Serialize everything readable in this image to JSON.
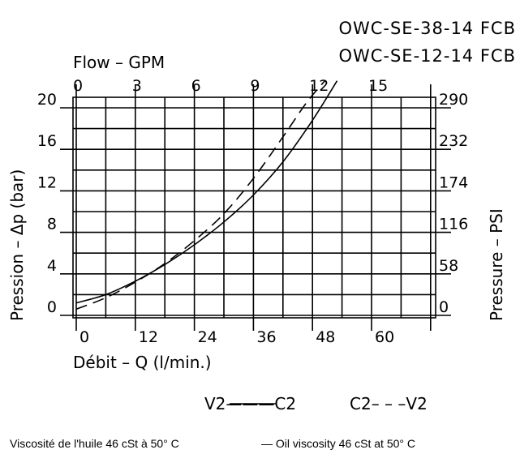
{
  "models": [
    "OWC-SE-38-14 FCB",
    "OWC-SE-12-14 FCB"
  ],
  "chart_data": {
    "type": "line",
    "axes": {
      "top_x": {
        "label": "Flow  –  GPM",
        "ticks": [
          "0",
          "3",
          "6",
          "9",
          "12",
          "15"
        ],
        "range": [
          0,
          18.2
        ]
      },
      "bottom_x": {
        "label": "Débit  –  Q (l/min.)",
        "ticks": [
          "0",
          "12",
          "24",
          "36",
          "48",
          "60"
        ],
        "range": [
          0,
          69
        ]
      },
      "left_y": {
        "label": "Pression  –  Δp (bar)",
        "ticks": [
          "0",
          "4",
          "8",
          "12",
          "16",
          "20"
        ],
        "range": [
          0,
          22.5
        ]
      },
      "right_y": {
        "label": "Pressure  –  PSI",
        "ticks": [
          "0",
          "58",
          "116",
          "174",
          "232",
          "290"
        ],
        "range": [
          0,
          326
        ]
      }
    },
    "grid": true,
    "series": [
      {
        "name": "V2———C2",
        "style": "solid",
        "x": [
          0,
          6,
          12,
          18,
          24,
          30,
          36,
          42,
          48,
          53
        ],
        "y": [
          1.2,
          2.0,
          3.3,
          4.9,
          6.8,
          9.0,
          11.6,
          14.8,
          18.8,
          22.6
        ]
      },
      {
        "name": "C2– – –V2",
        "style": "dashed",
        "x": [
          0,
          6,
          12,
          18,
          24,
          30,
          36,
          42,
          46.8,
          50.5
        ],
        "y": [
          0.6,
          1.7,
          3.2,
          5.0,
          7.2,
          9.8,
          13.2,
          17.2,
          20.5,
          22.6
        ]
      }
    ],
    "legend": [
      "V2———C2",
      "C2– – –V2"
    ]
  },
  "footnote": {
    "fr": "Viscosité de l'huile 46 cSt à 50° C",
    "en": "— Oil viscosity 46 cSt at 50° C"
  }
}
